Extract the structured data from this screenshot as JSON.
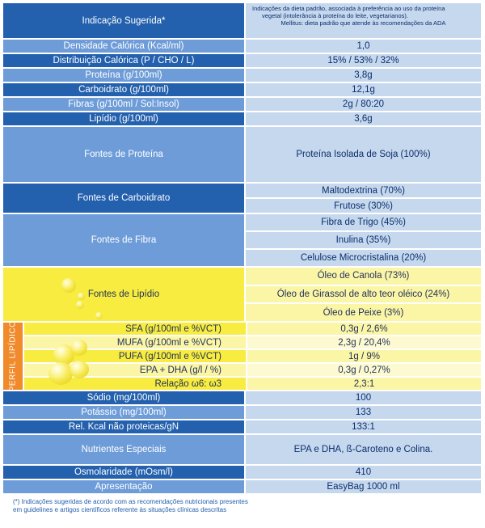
{
  "indicacao": {
    "label": "Indicação Sugerida*",
    "line1": "Indicações da dieta padrão, associada à preferência ao uso da proteína",
    "line2": "vegetal (intolerância à proteína do leite, vegetarianos).",
    "line3": "Mellitus: dieta padrão que atende às recomendações da ADA"
  },
  "rows_top": [
    {
      "label": "Densidade Calórica (Kcal/ml)",
      "value": "1,0"
    },
    {
      "label": "Distribuição Calórica (P / CHO / L)",
      "value": "15% / 53% / 32%"
    },
    {
      "label": "Proteína  (g/100ml)",
      "value": "3,8g"
    },
    {
      "label": "Carboidrato  (g/100ml)",
      "value": "12,1g"
    },
    {
      "label": "Fibras (g/100ml / Sol:Insol)",
      "value": "2g / 80:20"
    },
    {
      "label": "Lipídio  (g/100ml)",
      "value": "3,6g"
    }
  ],
  "fontes_proteina": {
    "label": "Fontes de Proteína",
    "value": "Proteína Isolada de Soja (100%)"
  },
  "fontes_carboidrato": {
    "label": "Fontes de Carboidrato",
    "values": [
      "Maltodextrina (70%)",
      "Frutose (30%)"
    ]
  },
  "fontes_fibra": {
    "label": "Fontes de Fibra",
    "values": [
      "Fibra de Trigo (45%)",
      "Inulina (35%)",
      "Celulose Microcristalina (20%)"
    ]
  },
  "fontes_lipidio": {
    "label": "Fontes de Lipídio",
    "values": [
      "Óleo de Canola (73%)",
      "Óleo de Girassol de alto teor oléico (24%)",
      "Óleo de Peixe (3%)"
    ]
  },
  "perfil_lipidico": {
    "side_label": "PERFIL LIPÍDICO",
    "rows": [
      {
        "label": "SFA (g/100ml e %VCT)",
        "value": "0,3g / 2,6%"
      },
      {
        "label": "MUFA (g/100ml e %VCT)",
        "value": "2,3g / 20,4%"
      },
      {
        "label": "PUFA (g/100ml e %VCT)",
        "value": "1g / 9%"
      },
      {
        "label": "EPA + DHA (g/l / %)",
        "value": "0,3g / 0,27%"
      },
      {
        "label": "Relação   ω6: ω3",
        "value": "2,3:1"
      }
    ]
  },
  "rows_bottom": [
    {
      "label": "Sódio (mg/100ml)",
      "value": "100"
    },
    {
      "label": "Potássio (mg/100ml)",
      "value": "133"
    },
    {
      "label": "Rel. Kcal não proteicas/gN",
      "value": "133:1"
    },
    {
      "label": "Nutrientes Especiais",
      "value": "EPA e DHA,   ß-Caroteno e Colina."
    },
    {
      "label": "Osmolaridade (mOsm/l)",
      "value": "410"
    },
    {
      "label": "Apresentação",
      "value": "EasyBag 1000 ml"
    }
  ],
  "footnote": {
    "line1": "(*) Indicações sugeridas de acordo com as recomendações nutricionais presentes",
    "line2": "em guidelines e artigos científicos referente às situações clínicas descritas"
  },
  "colors": {
    "dark_blue": "#2360ad",
    "light_blue": "#6d9cd8",
    "value_bg": "#c6d8ee",
    "yellow": "#f7ec3f",
    "orange": "#f08a2a"
  }
}
